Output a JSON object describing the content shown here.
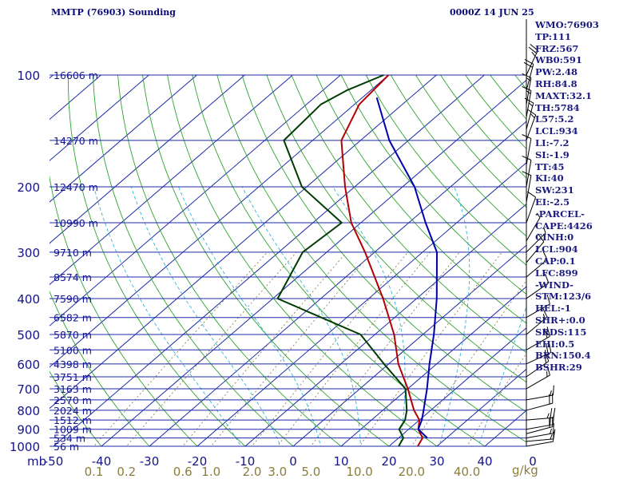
{
  "header": {
    "title": "MMTP (76903) Sounding",
    "time": "0000Z 14 JUN 25"
  },
  "stats": [
    "WMO:76903",
    "TP:111",
    "FRZ:567",
    "WB0:591",
    "PW:2.48",
    "RH:84.8",
    "MAXT:32.1",
    "TH:5784",
    "L57:5.2",
    "LCL:934",
    "LI:-7.2",
    "SI:-1.9",
    "TT:45",
    "KI:40",
    "SW:231",
    "EI:-2.5",
    "-PARCEL-",
    "CAPE:4426",
    "CINH:0",
    "LCL:904",
    "CAP:0.1",
    "LFC:899",
    "-WIND-",
    "STM:123/6",
    "HEL:-1",
    "SHR+:0.0",
    "SRDS:115",
    "EHI:0.5",
    "BRN:150.4",
    "BSHR:29"
  ],
  "chart_data": {
    "type": "line",
    "subtype": "skew-T log-P sounding",
    "y_axis": {
      "label": "mb",
      "scale": "log",
      "range": [
        1000,
        100
      ],
      "ticks": [
        100,
        200,
        300,
        400,
        500,
        600,
        700,
        800,
        900,
        1000
      ]
    },
    "x_axis": {
      "label": "",
      "units": "°C",
      "range": [
        -50,
        50
      ],
      "ticks": [
        "-50",
        "-40",
        "-30",
        "-20",
        "-10",
        "0",
        "10",
        "20",
        "30",
        "40",
        "0"
      ]
    },
    "mixing_ratio_axis": {
      "units": "g/kg",
      "ticks": [
        "0.1",
        "0.2",
        "0.6",
        "1.0",
        "2.0",
        "3.0",
        "5.0",
        "10.0",
        "20.0",
        "40.0"
      ]
    },
    "height_labels": [
      {
        "p": 100,
        "label": "16606 m"
      },
      {
        "p": 150,
        "label": "14270 m"
      },
      {
        "p": 200,
        "label": "12470 m"
      },
      {
        "p": 250,
        "label": "10990 m"
      },
      {
        "p": 300,
        "label": "9710 m"
      },
      {
        "p": 350,
        "label": "8574 m"
      },
      {
        "p": 400,
        "label": "7590 m"
      },
      {
        "p": 450,
        "label": "6582 m"
      },
      {
        "p": 500,
        "label": "5870 m"
      },
      {
        "p": 550,
        "label": "5100 m"
      },
      {
        "p": 600,
        "label": "4398 m"
      },
      {
        "p": 650,
        "label": "3751 m"
      },
      {
        "p": 700,
        "label": "3163 m"
      },
      {
        "p": 750,
        "label": "2570 m"
      },
      {
        "p": 800,
        "label": "2024 m"
      },
      {
        "p": 850,
        "label": "1512 m"
      },
      {
        "p": 900,
        "label": "1009 m"
      },
      {
        "p": 950,
        "label": "534 m"
      },
      {
        "p": 1000,
        "label": "56 m"
      }
    ],
    "series": [
      {
        "color": "#b40000",
        "points": [
          [
            1000,
            26
          ],
          [
            950,
            25
          ],
          [
            900,
            22
          ],
          [
            850,
            20
          ],
          [
            800,
            16.5
          ],
          [
            700,
            10
          ],
          [
            600,
            2
          ],
          [
            500,
            -6
          ],
          [
            400,
            -17
          ],
          [
            300,
            -32
          ],
          [
            250,
            -42
          ],
          [
            200,
            -52
          ],
          [
            150,
            -64
          ],
          [
            120,
            -69
          ],
          [
            100,
            -70
          ]
        ]
      },
      {
        "color": "#003c00",
        "points": [
          [
            1000,
            22
          ],
          [
            950,
            21
          ],
          [
            900,
            18
          ],
          [
            850,
            17
          ],
          [
            800,
            15
          ],
          [
            700,
            9.5
          ],
          [
            600,
            -1
          ],
          [
            500,
            -13
          ],
          [
            400,
            -39
          ],
          [
            300,
            -45
          ],
          [
            250,
            -44
          ],
          [
            200,
            -61
          ],
          [
            150,
            -76
          ],
          [
            120,
            -77
          ],
          [
            110,
            -75
          ],
          [
            100,
            -71
          ]
        ]
      },
      {
        "color": "#0000aa",
        "points": [
          [
            950,
            26
          ],
          [
            900,
            22
          ],
          [
            850,
            20.5
          ],
          [
            800,
            18.5
          ],
          [
            700,
            14
          ],
          [
            600,
            8.5
          ],
          [
            500,
            2.3
          ],
          [
            400,
            -5.8
          ],
          [
            300,
            -17
          ],
          [
            250,
            -26.5
          ],
          [
            200,
            -37.5
          ],
          [
            150,
            -54
          ],
          [
            115,
            -67
          ]
        ]
      }
    ],
    "wind_barbs": [
      {
        "p": 1000,
        "spd": 10,
        "dir": 80
      },
      {
        "p": 970,
        "spd": 15,
        "dir": 85
      },
      {
        "p": 950,
        "spd": 15,
        "dir": 80
      },
      {
        "p": 925,
        "spd": 20,
        "dir": 75
      },
      {
        "p": 900,
        "spd": 20,
        "dir": 80
      },
      {
        "p": 850,
        "spd": 25,
        "dir": 85
      },
      {
        "p": 800,
        "spd": 20,
        "dir": 75
      },
      {
        "p": 750,
        "spd": 15,
        "dir": 80
      },
      {
        "p": 700,
        "spd": 15,
        "dir": 60
      },
      {
        "p": 650,
        "spd": 15,
        "dir": 55
      },
      {
        "p": 600,
        "spd": 25,
        "dir": 65
      },
      {
        "p": 550,
        "spd": 20,
        "dir": 60
      },
      {
        "p": 500,
        "spd": 15,
        "dir": 50
      },
      {
        "p": 450,
        "spd": 10,
        "dir": 60
      },
      {
        "p": 400,
        "spd": 10,
        "dir": 55
      },
      {
        "p": 350,
        "spd": 10,
        "dir": 50
      },
      {
        "p": 320,
        "spd": 10,
        "dir": 40
      },
      {
        "p": 300,
        "spd": 5,
        "dir": 45
      },
      {
        "p": 280,
        "spd": 5,
        "dir": 30
      },
      {
        "p": 250,
        "spd": 10,
        "dir": 20
      },
      {
        "p": 220,
        "spd": 10,
        "dir": 10
      },
      {
        "p": 200,
        "spd": 10,
        "dir": 10
      },
      {
        "p": 175,
        "spd": 10,
        "dir": 10
      },
      {
        "p": 150,
        "spd": 15,
        "dir": 20
      },
      {
        "p": 140,
        "spd": 15,
        "dir": 15
      },
      {
        "p": 130,
        "spd": 15,
        "dir": 10
      },
      {
        "p": 120,
        "spd": 15,
        "dir": 10
      },
      {
        "p": 110,
        "spd": 20,
        "dir": 15
      },
      {
        "p": 100,
        "spd": 25,
        "dir": 25
      }
    ]
  }
}
